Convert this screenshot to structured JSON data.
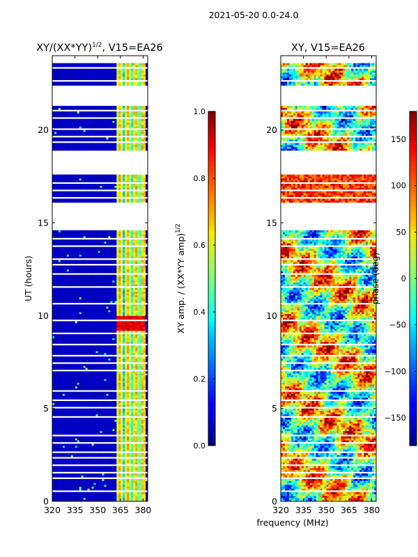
{
  "figure": {
    "suptitle": "2021-05-20 0.0-24.0",
    "shared_xlabel": "frequency (MHz)"
  },
  "colors": {
    "gap_rows": "#ffffff",
    "axis_line": "#000000"
  },
  "chart_data": [
    {
      "type": "heatmap",
      "title_main": "XY/(XX*YY)",
      "title_sup": "1/2",
      "title_tail": ", V15=EA26",
      "ylabel": "UT (hours)",
      "xlim": [
        320,
        383
      ],
      "ylim": [
        0,
        24
      ],
      "xticks": [
        320,
        335,
        350,
        365,
        380
      ],
      "yticks": [
        0,
        5,
        10,
        15,
        20
      ],
      "colorbar": {
        "label_main": "XY amp. / (XX*YY amp)",
        "label_sup": "1/2",
        "range": [
          0.0,
          1.0
        ],
        "ticks": [
          0.0,
          0.2,
          0.4,
          0.6,
          0.8,
          1.0
        ],
        "tick_labels": [
          "0.0",
          "0.2",
          "0.4",
          "0.6",
          "0.8",
          "1.0"
        ]
      },
      "description_values": {
        "background_level": 0.05,
        "rfi_band_MHz": [
          362,
          381
        ],
        "rfi_level": 0.5,
        "peak_time_h": [
          9.2,
          10.0
        ],
        "peak_level": 0.85
      }
    },
    {
      "type": "heatmap",
      "title_main": "XY, V15=EA26",
      "ylabel": "",
      "xlim": [
        320,
        383
      ],
      "ylim": [
        0,
        24
      ],
      "xticks": [
        320,
        335,
        350,
        365,
        380
      ],
      "yticks": [
        0,
        5,
        10,
        15,
        20
      ],
      "colorbar": {
        "label_main": "phase (deg)",
        "range": [
          -180,
          180
        ],
        "ticks": [
          -150,
          -100,
          -50,
          0,
          50,
          100,
          150
        ],
        "tick_labels": [
          "−150",
          "−100",
          "−50",
          "0",
          "50",
          "100",
          "150"
        ]
      },
      "description_values": {
        "phase_range_deg": [
          -180,
          180
        ],
        "warm_period_h": [
          16.0,
          18.0
        ]
      }
    }
  ],
  "gaps_hours": [
    [
      0.45,
      0.6
    ],
    [
      1.25,
      1.35
    ],
    [
      1.55,
      1.65
    ],
    [
      1.95,
      2.02
    ],
    [
      2.3,
      2.36
    ],
    [
      2.62,
      2.7
    ],
    [
      3.1,
      3.16
    ],
    [
      3.52,
      3.6
    ],
    [
      4.18,
      4.24
    ],
    [
      4.55,
      4.62
    ],
    [
      5.05,
      5.12
    ],
    [
      5.45,
      5.52
    ],
    [
      5.9,
      5.96
    ],
    [
      6.55,
      6.62
    ],
    [
      7.05,
      7.1
    ],
    [
      7.42,
      7.5
    ],
    [
      7.85,
      7.92
    ],
    [
      8.45,
      8.52
    ],
    [
      9.02,
      9.1
    ],
    [
      9.75,
      9.82
    ],
    [
      10.62,
      10.7
    ],
    [
      11.18,
      11.25
    ],
    [
      11.55,
      11.62
    ],
    [
      12.2,
      12.27
    ],
    [
      12.7,
      12.76
    ],
    [
      13.02,
      13.08
    ],
    [
      13.75,
      13.8
    ],
    [
      14.1,
      14.18
    ],
    [
      14.55,
      16.05
    ],
    [
      16.3,
      16.36
    ],
    [
      16.72,
      16.78
    ],
    [
      17.15,
      17.22
    ],
    [
      17.55,
      18.95
    ],
    [
      19.3,
      19.36
    ],
    [
      19.6,
      19.68
    ],
    [
      20.05,
      20.12
    ],
    [
      20.6,
      20.66
    ],
    [
      21.0,
      21.06
    ],
    [
      21.3,
      22.4
    ],
    [
      22.6,
      22.66
    ],
    [
      23.3,
      23.36
    ],
    [
      23.6,
      24.0
    ]
  ]
}
